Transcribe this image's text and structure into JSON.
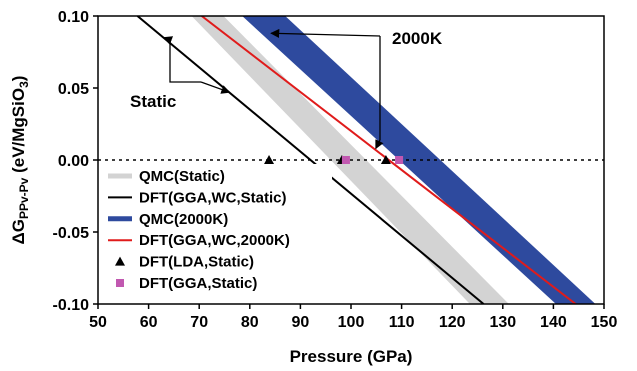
{
  "chart_data": {
    "type": "area",
    "xlabel": "Pressure (GPa)",
    "ylabel": {
      "prefix": "ΔG",
      "subscript": "PPv-Pv",
      "unit_prefix": " (eV/MgSiO",
      "unit_subscript": "3",
      "unit_suffix": ")"
    },
    "xlim": [
      50,
      150
    ],
    "ylim": [
      -0.1,
      0.1
    ],
    "xticks": [
      "50",
      "60",
      "70",
      "80",
      "90",
      "100",
      "110",
      "120",
      "130",
      "140",
      "150"
    ],
    "yticks": [
      "0.10",
      "0.05",
      "0.00",
      "-0.05",
      "-0.10"
    ],
    "zero_line": "dotted",
    "grid": false,
    "legend_position": "bottom-left",
    "bands": [
      {
        "name": "QMC(Static)",
        "color": "#d3d3d3",
        "upper": [
          [
            74.8,
            0.1
          ],
          [
            131.2,
            -0.1
          ]
        ],
        "lower": [
          [
            68.5,
            0.1
          ],
          [
            123.5,
            -0.1
          ]
        ]
      },
      {
        "name": "QMC(2000K)",
        "color": "#2e4a9e",
        "upper": [
          [
            87.0,
            0.1
          ],
          [
            148.3,
            -0.1
          ]
        ],
        "lower": [
          [
            78.5,
            0.1
          ],
          [
            140.5,
            -0.1
          ]
        ]
      }
    ],
    "lines": [
      {
        "name": "DFT(GGA,WC,Static)",
        "color": "#000000",
        "points": [
          [
            57.8,
            0.1
          ],
          [
            126.2,
            -0.1
          ]
        ]
      },
      {
        "name": "DFT(GGA,WC,2000K)",
        "color": "#e01b1b",
        "points": [
          [
            70.5,
            0.1
          ],
          [
            144.4,
            -0.1
          ]
        ]
      }
    ],
    "points": [
      {
        "name": "DFT(LDA,Static)",
        "marker": "triangle",
        "color": "#000000",
        "data": [
          [
            83.8,
            0.0
          ],
          [
            98.2,
            0.0
          ],
          [
            106.9,
            0.0
          ]
        ]
      },
      {
        "name": "DFT(GGA,Static)",
        "marker": "square",
        "color": "#c158b0",
        "data": [
          [
            99.0,
            0.0
          ],
          [
            109.5,
            0.0
          ]
        ]
      }
    ],
    "legend": [
      {
        "label": "QMC(Static)",
        "style": "thick",
        "color": "#d3d3d3"
      },
      {
        "label": "DFT(GGA,WC,Static)",
        "style": "line",
        "color": "#000000"
      },
      {
        "label": "QMC(2000K)",
        "style": "thick",
        "color": "#2e4a9e"
      },
      {
        "label": "DFT(GGA,WC,2000K)",
        "style": "line",
        "color": "#e01b1b"
      },
      {
        "label": "DFT(LDA,Static)",
        "style": "triangle",
        "color": "#000000"
      },
      {
        "label": "DFT(GGA,Static)",
        "style": "square",
        "color": "#c158b0"
      }
    ],
    "annotations": [
      {
        "text": "Static",
        "arrow_targets": [
          [
            63.0,
            0.085
          ],
          [
            76.0,
            0.047
          ]
        ]
      },
      {
        "text": "2000K",
        "arrow_targets": [
          [
            84.2,
            0.088
          ],
          [
            104.9,
            0.008
          ]
        ]
      }
    ]
  }
}
